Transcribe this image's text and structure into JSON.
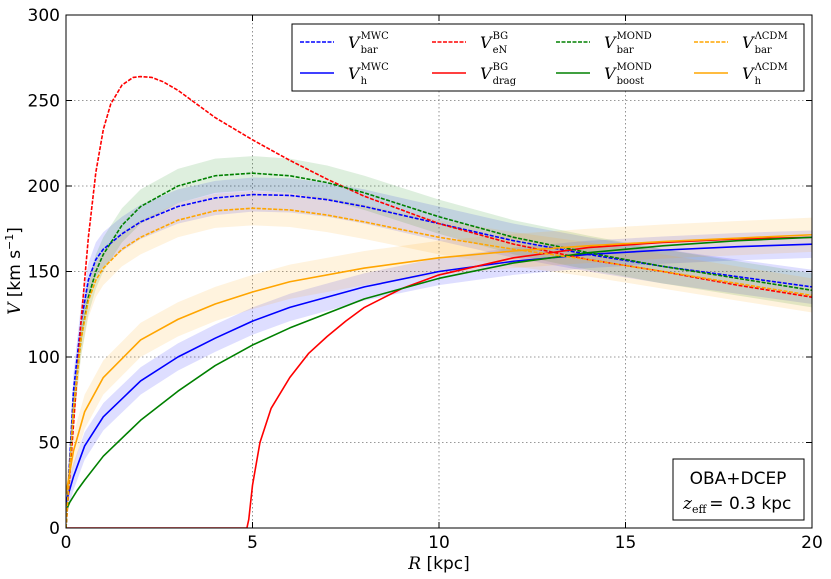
{
  "chart_data": {
    "type": "line",
    "xlabel": {
      "var": "R",
      "unit": "[kpc]"
    },
    "ylabel": {
      "var": "V",
      "unit_pre": "[km s",
      "unit_exp": "−1",
      "unit_post": "]"
    },
    "xlim": [
      0,
      20
    ],
    "ylim": [
      0,
      300
    ],
    "xticks": [
      0,
      5,
      10,
      15,
      20
    ],
    "yticks": [
      0,
      50,
      100,
      150,
      200,
      250,
      300
    ],
    "grid": true,
    "legend_position": "top-right",
    "annotation": {
      "line1": "OBA+DCEP",
      "line2_var": "z",
      "line2_sub": "eff",
      "line2_value": "= 0.3 kpc"
    },
    "series": [
      {
        "key": "vbar_mwc",
        "name": "V_bar^MWC",
        "sup": "MWC",
        "sub": "bar",
        "color": "#0000ff",
        "dash": true,
        "band": 10,
        "x": [
          0,
          0.2,
          0.4,
          0.6,
          0.8,
          1,
          1.5,
          2,
          3,
          4,
          5,
          6,
          7,
          8,
          10,
          12,
          14,
          16,
          18,
          20
        ],
        "y": [
          0,
          80,
          120,
          145,
          157,
          163,
          172,
          179,
          188,
          193,
          195,
          194.5,
          192,
          188,
          178,
          168,
          160,
          153,
          147,
          141
        ]
      },
      {
        "key": "vh_mwc",
        "name": "V_h^MWC",
        "sup": "MWC",
        "sub": "h",
        "color": "#0000ff",
        "dash": false,
        "band": 8,
        "x": [
          0,
          0.2,
          0.5,
          1,
          2,
          3,
          4,
          5,
          6,
          8,
          10,
          12,
          14,
          16,
          18,
          20
        ],
        "y": [
          15,
          30,
          48,
          65,
          86,
          100,
          111,
          121,
          129,
          141,
          150,
          156,
          160,
          162.5,
          164.5,
          166
        ]
      },
      {
        "key": "ven_bg",
        "name": "V_eN^BG",
        "sup": "BG",
        "sub": "eN",
        "color": "#ff0000",
        "dash": true,
        "band": 0,
        "x": [
          0,
          0.2,
          0.4,
          0.6,
          0.8,
          1,
          1.2,
          1.5,
          1.8,
          2,
          2.3,
          2.6,
          3,
          3.5,
          4,
          5,
          6,
          7,
          8,
          10,
          12,
          14,
          16,
          18,
          20
        ],
        "y": [
          0,
          60,
          120,
          170,
          208,
          233,
          248,
          259,
          263.5,
          264,
          263.5,
          261,
          256,
          248,
          240,
          227,
          215,
          204,
          194,
          178,
          166,
          157,
          150,
          142,
          135
        ]
      },
      {
        "key": "vdrag_bg",
        "name": "V_drag^BG",
        "sup": "BG",
        "sub": "drag",
        "color": "#ff0000",
        "dash": false,
        "band": 0,
        "x": [
          0,
          4.85,
          4.9,
          5,
          5.2,
          5.5,
          6,
          6.5,
          7,
          7.5,
          8,
          9,
          10,
          12,
          14,
          16,
          18,
          20
        ],
        "y": [
          0,
          0,
          5,
          25,
          50,
          70,
          88,
          102,
          112,
          121,
          129,
          140,
          148,
          158,
          164,
          167,
          169,
          170
        ]
      },
      {
        "key": "vbar_mond",
        "name": "V_bar^MOND",
        "sup": "MOND",
        "sub": "bar",
        "color": "#008000",
        "dash": true,
        "band": 10,
        "x": [
          0,
          0.2,
          0.4,
          0.6,
          0.8,
          1,
          1.5,
          2,
          3,
          4,
          5,
          6,
          7,
          8,
          10,
          12,
          14,
          16,
          18,
          20
        ],
        "y": [
          0,
          70,
          110,
          135,
          150,
          160,
          177,
          188,
          200,
          206,
          207.5,
          206,
          202,
          196,
          182,
          170,
          161,
          153,
          146,
          139
        ]
      },
      {
        "key": "vboost_mond",
        "name": "V_boost^MOND",
        "sup": "MOND",
        "sub": "boost",
        "color": "#008000",
        "dash": false,
        "band": 0,
        "x": [
          0,
          0.1,
          0.3,
          0.5,
          1,
          2,
          3,
          4,
          5,
          6,
          8,
          10,
          12,
          14,
          16,
          18,
          20
        ],
        "y": [
          10,
          15,
          22,
          28,
          42,
          63,
          80,
          95,
          107,
          117,
          134,
          146,
          155,
          161,
          165,
          168,
          170
        ]
      },
      {
        "key": "vbar_lcdm",
        "name": "V_bar^ΛCDM",
        "sup": "ΛCDM",
        "sub": "bar",
        "color": "#ffa500",
        "dash": true,
        "band": 10,
        "x": [
          0,
          0.2,
          0.4,
          0.6,
          0.8,
          1,
          1.5,
          2,
          3,
          4,
          5,
          6,
          7,
          8,
          10,
          12,
          14,
          16,
          18,
          20
        ],
        "y": [
          0,
          70,
          110,
          133,
          145,
          152,
          163,
          170,
          180,
          185.5,
          187,
          186,
          183,
          179,
          170,
          163,
          157,
          150,
          143,
          136
        ]
      },
      {
        "key": "vh_lcdm",
        "name": "V_h^ΛCDM",
        "sup": "ΛCDM",
        "sub": "h",
        "color": "#ffa500",
        "dash": false,
        "band": 10,
        "x": [
          0,
          0.2,
          0.5,
          1,
          2,
          3,
          4,
          5,
          6,
          8,
          10,
          12,
          14,
          16,
          18,
          20
        ],
        "y": [
          20,
          45,
          68,
          88,
          110,
          122,
          131,
          138,
          144,
          152,
          158,
          162,
          165,
          167.5,
          169.5,
          171.5
        ]
      }
    ]
  }
}
